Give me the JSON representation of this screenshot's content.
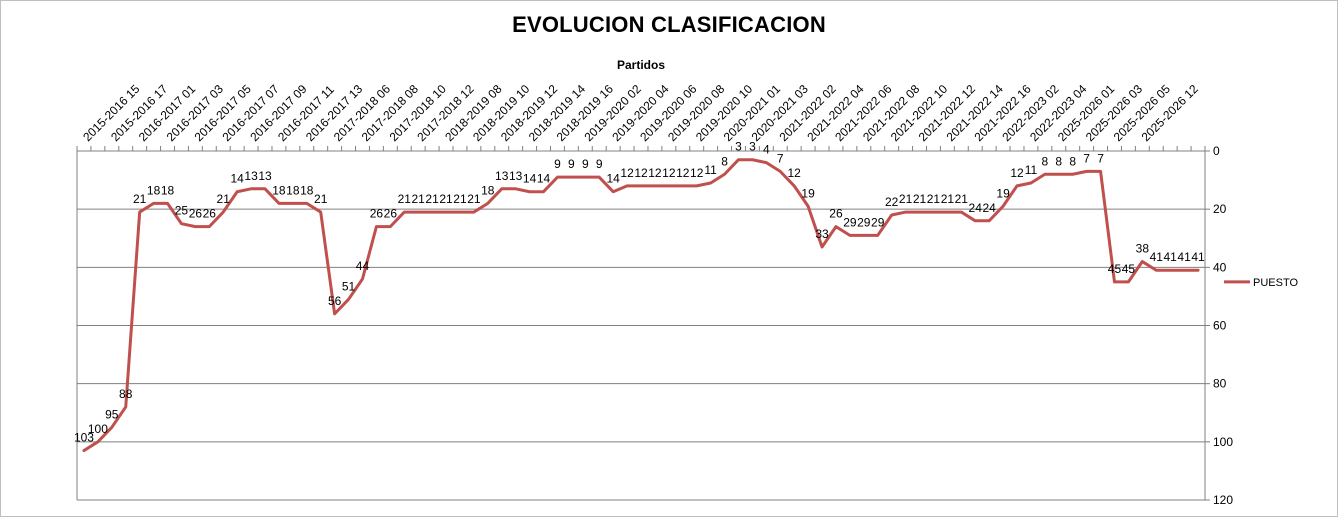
{
  "chart_data": {
    "type": "line",
    "title": "EVOLUCION CLASIFICACION",
    "xlabel": "Partidos",
    "ylabel": "",
    "ylim": [
      0,
      120
    ],
    "y_reversed": true,
    "y_ticks": [
      0,
      20,
      40,
      60,
      80,
      100,
      120
    ],
    "y_axis_position": "right",
    "x_axis_position": "top",
    "grid": true,
    "legend_position": "right",
    "tick_labels": [
      "2015-2016 15",
      "2015-2016 17",
      "2016-2017 01",
      "2016-2017 03",
      "2016-2017 05",
      "2016-2017 07",
      "2016-2017 09",
      "2016-2017 11",
      "2016-2017 13",
      "2017-2018 06",
      "2017-2018 08",
      "2017-2018 10",
      "2017-2018 12",
      "2018-2019 08",
      "2018-2019 10",
      "2018-2019 12",
      "2018-2019 14",
      "2018-2019 16",
      "2019-2020 02",
      "2019-2020 04",
      "2019-2020 06",
      "2019-2020 08",
      "2019-2020 10",
      "2020-2021 01",
      "2020-2021 03",
      "2021-2022 02",
      "2021-2022 04",
      "2021-2022 06",
      "2021-2022 08",
      "2021-2022 10",
      "2021-2022 12",
      "2021-2022 14",
      "2021-2022 16",
      "2022-2023 02",
      "2022-2023 04",
      "2025-2026 01",
      "2025-2026 03",
      "2025-2026 05",
      "2025-2026 12"
    ],
    "series": [
      {
        "name": "PUESTO",
        "color": "#c0504d",
        "values": [
          103,
          100,
          95,
          88,
          21,
          18,
          18,
          25,
          26,
          26,
          21,
          14,
          13,
          13,
          18,
          18,
          18,
          21,
          56,
          51,
          44,
          26,
          26,
          21,
          21,
          21,
          21,
          21,
          21,
          18,
          13,
          13,
          14,
          14,
          9,
          9,
          9,
          9,
          14,
          12,
          12,
          12,
          12,
          12,
          12,
          11,
          8,
          3,
          3,
          4,
          7,
          12,
          19,
          33,
          26,
          29,
          29,
          29,
          22,
          21,
          21,
          21,
          21,
          21,
          24,
          24,
          19,
          12,
          11,
          8,
          8,
          8,
          7,
          7,
          45,
          45,
          38,
          41,
          41,
          41,
          41
        ]
      }
    ]
  }
}
